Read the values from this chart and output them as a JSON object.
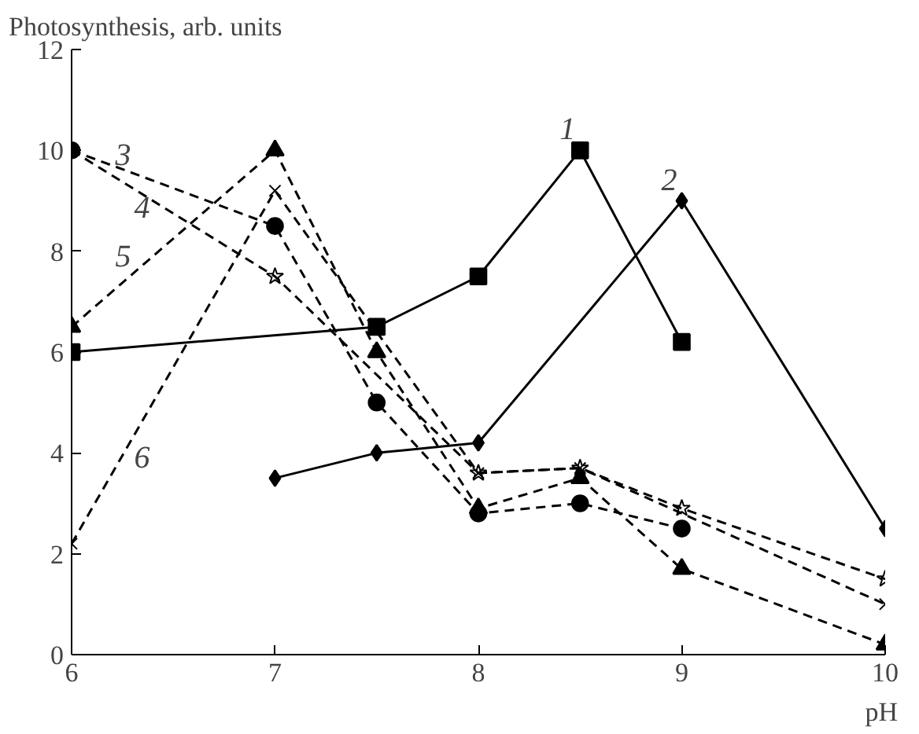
{
  "chart_data": {
    "type": "line",
    "ylabel": "Photosynthesis, arb. units",
    "xlabel": "pH",
    "xlim": [
      6,
      10
    ],
    "ylim": [
      0,
      12
    ],
    "xticks": [
      6,
      7,
      8,
      9,
      10
    ],
    "yticks": [
      0,
      2,
      4,
      6,
      8,
      10,
      12
    ],
    "grid": false,
    "series": [
      {
        "name": "1",
        "x": [
          6,
          7.5,
          8,
          8.5,
          9
        ],
        "values": [
          6.0,
          6.5,
          7.5,
          10.0,
          6.2
        ],
        "color": "#000000",
        "marker": "square",
        "line_style": "solid"
      },
      {
        "name": "2",
        "x": [
          7,
          7.5,
          8,
          9,
          10
        ],
        "values": [
          3.5,
          4.0,
          4.2,
          9.0,
          2.5
        ],
        "color": "#000000",
        "marker": "diamond",
        "line_style": "solid"
      },
      {
        "name": "3",
        "x": [
          6,
          7,
          7.5,
          8,
          8.5,
          9
        ],
        "values": [
          10.0,
          8.5,
          5.0,
          2.8,
          3.0,
          2.5
        ],
        "color": "#000000",
        "marker": "circle",
        "line_style": "dashed"
      },
      {
        "name": "4",
        "x": [
          6,
          7,
          8,
          8.5,
          9,
          10
        ],
        "values": [
          10.0,
          7.5,
          3.6,
          3.7,
          2.9,
          1.5
        ],
        "color": "#000000",
        "marker": "star",
        "line_style": "dashed"
      },
      {
        "name": "5",
        "x": [
          6,
          7,
          7.5,
          8,
          8.5,
          9,
          10
        ],
        "values": [
          6.5,
          10.0,
          6.0,
          2.9,
          3.5,
          1.7,
          0.2
        ],
        "color": "#000000",
        "marker": "triangle",
        "line_style": "dashed"
      },
      {
        "name": "6",
        "x": [
          6,
          7,
          8,
          8.5,
          10
        ],
        "values": [
          2.2,
          9.2,
          3.6,
          3.7,
          1.0
        ],
        "color": "#000000",
        "marker": "cross",
        "line_style": "dashed"
      }
    ]
  }
}
